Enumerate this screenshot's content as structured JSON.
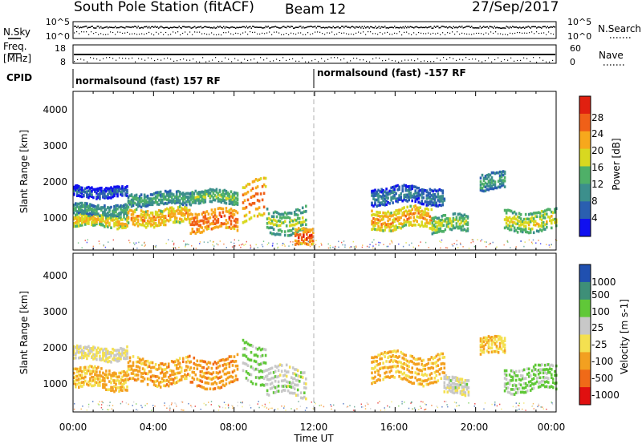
{
  "header": {
    "station": "South Pole Station (fitACF)",
    "beam": "Beam 12",
    "date": "27/Sep/2017"
  },
  "strips": {
    "nsky_label": "N.Sky",
    "freq_label_1": "Freq.",
    "freq_label_2": "[MHz]",
    "cpid_label": "CPID",
    "nsearch_label": "N.Search",
    "nave_label": "Nave",
    "left_ticks_top": [
      "10^5",
      "10^0"
    ],
    "right_ticks_top": [
      "10^5",
      "10^0"
    ],
    "left_ticks_freq": [
      "18",
      "8"
    ],
    "right_ticks_nave": [
      "60",
      "0"
    ],
    "cpid_segments": [
      {
        "label": "normalsound (fast) 157 RF",
        "start": "00:00",
        "end": "12:00"
      },
      {
        "label": "normalsound (fast) -157 RF",
        "start": "12:00",
        "end": "24:00"
      }
    ]
  },
  "x_axis": {
    "label": "Time UT",
    "ticks": [
      "00:00",
      "04:00",
      "08:00",
      "12:00",
      "16:00",
      "20:00",
      "00:00"
    ]
  },
  "power_panel": {
    "ylabel": "Slant Range [km]",
    "yticks": [
      "4000",
      "3000",
      "2000",
      "1000"
    ],
    "colorbar_label": "Power [dB]",
    "colorbar_ticks": [
      "28",
      "24",
      "20",
      "16",
      "12",
      "8",
      "4"
    ]
  },
  "velocity_panel": {
    "ylabel": "Slant Range [km]",
    "yticks": [
      "4000",
      "3000",
      "2000",
      "1000"
    ],
    "colorbar_label": "Velocity [m s-1]",
    "colorbar_ticks": [
      "1000",
      "500",
      "100",
      "25",
      "-25",
      "-100",
      "-500",
      "-1000"
    ]
  },
  "chart_data": [
    {
      "type": "heatmap",
      "title": "Power [dB]",
      "xlabel": "Time UT",
      "ylabel": "Slant Range [km]",
      "xlim": [
        0,
        24
      ],
      "ylim": [
        180,
        4600
      ],
      "zlim": [
        0,
        30
      ],
      "colors": [
        "#1010f0",
        "#2a5fb0",
        "#3c8f8c",
        "#4fb068",
        "#d8d820",
        "#f7a81c",
        "#f06018",
        "#e02010"
      ],
      "bands": [
        {
          "t0": 0.0,
          "t1": 2.7,
          "r_center": 1000,
          "r_half": 150,
          "value": 20
        },
        {
          "t0": 0.0,
          "t1": 2.7,
          "r_center": 1300,
          "r_half": 120,
          "value": 13
        },
        {
          "t0": 0.0,
          "t1": 2.7,
          "r_center": 1800,
          "r_half": 120,
          "value": 7
        },
        {
          "t0": 2.7,
          "t1": 5.8,
          "r_center": 1100,
          "r_half": 200,
          "value": 22
        },
        {
          "t0": 2.7,
          "t1": 5.8,
          "r_center": 1600,
          "r_half": 150,
          "value": 13
        },
        {
          "t0": 5.8,
          "t1": 8.2,
          "r_center": 1000,
          "r_half": 250,
          "value": 25
        },
        {
          "t0": 5.8,
          "t1": 8.2,
          "r_center": 1650,
          "r_half": 150,
          "value": 15
        },
        {
          "t0": 8.4,
          "t1": 9.6,
          "r_center": 1500,
          "r_half": 500,
          "value": 24
        },
        {
          "t0": 9.6,
          "t1": 11.6,
          "r_center": 1000,
          "r_half": 300,
          "value": 15
        },
        {
          "t0": 11.0,
          "t1": 11.9,
          "r_center": 500,
          "r_half": 200,
          "value": 26
        },
        {
          "t0": 14.8,
          "t1": 17.8,
          "r_center": 1050,
          "r_half": 250,
          "value": 22
        },
        {
          "t0": 14.8,
          "t1": 18.4,
          "r_center": 1700,
          "r_half": 200,
          "value": 9
        },
        {
          "t0": 17.8,
          "t1": 19.6,
          "r_center": 900,
          "r_half": 200,
          "value": 17
        },
        {
          "t0": 20.2,
          "t1": 21.4,
          "r_center": 2100,
          "r_half": 200,
          "value": 12
        },
        {
          "t0": 21.4,
          "t1": 24.0,
          "r_center": 1000,
          "r_half": 250,
          "value": 18
        }
      ]
    },
    {
      "type": "heatmap",
      "title": "Velocity [m s-1]",
      "xlabel": "Time UT",
      "ylabel": "Slant Range [km]",
      "xlim": [
        0,
        24
      ],
      "ylim": [
        180,
        4600
      ],
      "zlim": [
        -1000,
        1000
      ],
      "colors": [
        "#e01010",
        "#f06a18",
        "#f3a020",
        "#f4e050",
        "#c8c8c8",
        "#60c838",
        "#3e8f78",
        "#2050b0"
      ],
      "bands": [
        {
          "t0": 0.0,
          "t1": 2.7,
          "r_center": 1100,
          "r_half": 250,
          "value": -300
        },
        {
          "t0": 0.0,
          "t1": 2.7,
          "r_center": 1800,
          "r_half": 150,
          "value": 0
        },
        {
          "t0": 2.7,
          "t1": 5.8,
          "r_center": 1300,
          "r_half": 300,
          "value": -350
        },
        {
          "t0": 5.8,
          "t1": 8.2,
          "r_center": 1300,
          "r_half": 350,
          "value": -400
        },
        {
          "t0": 8.4,
          "t1": 9.6,
          "r_center": 1600,
          "r_half": 500,
          "value": 300
        },
        {
          "t0": 9.6,
          "t1": 11.6,
          "r_center": 1000,
          "r_half": 350,
          "value": 150
        },
        {
          "t0": 14.8,
          "t1": 18.4,
          "r_center": 1400,
          "r_half": 350,
          "value": -300
        },
        {
          "t0": 18.4,
          "t1": 19.6,
          "r_center": 900,
          "r_half": 200,
          "value": 100
        },
        {
          "t0": 20.2,
          "t1": 21.4,
          "r_center": 2000,
          "r_half": 200,
          "value": -200
        },
        {
          "t0": 21.4,
          "t1": 24.0,
          "r_center": 1100,
          "r_half": 300,
          "value": 300
        }
      ]
    }
  ]
}
